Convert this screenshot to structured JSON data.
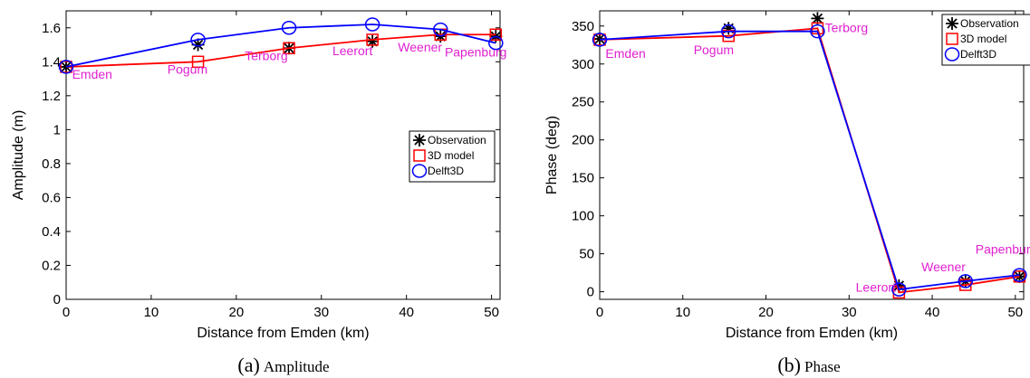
{
  "chart_data": [
    {
      "type": "line",
      "caption_letter": "(a)",
      "caption_text": "Amplitude",
      "xlabel": "Distance from Emden (km)",
      "ylabel": "Amplitude (m)",
      "xlim": [
        0,
        51
      ],
      "ylim": [
        0,
        1.7
      ],
      "xticks": [
        0,
        10,
        20,
        30,
        40,
        50
      ],
      "yticks": [
        0,
        0.2,
        0.4,
        0.6,
        0.8,
        1,
        1.2,
        1.4,
        1.6
      ],
      "ytick_labels": [
        "0",
        "0.2",
        "0.4",
        "0.6",
        "0.8",
        "1",
        "1.2",
        "1.4",
        "1.6"
      ],
      "grid": false,
      "legend_position": "right",
      "x": [
        0,
        15.5,
        26.2,
        36,
        44,
        50.5
      ],
      "series": [
        {
          "name": "Observation",
          "color": "#000000",
          "marker": "star",
          "line": false,
          "values": [
            1.37,
            1.5,
            1.48,
            1.52,
            1.55,
            1.55
          ]
        },
        {
          "name": "3D model",
          "color": "#ff0000",
          "marker": "square",
          "line": true,
          "values": [
            1.37,
            1.4,
            1.48,
            1.53,
            1.56,
            1.56
          ]
        },
        {
          "name": "Delft3D",
          "color": "#0000ff",
          "marker": "circle",
          "line": true,
          "values": [
            1.37,
            1.53,
            1.6,
            1.62,
            1.59,
            1.51
          ]
        }
      ],
      "annotations": [
        {
          "text": "Emden",
          "x": 0.7,
          "y": 1.3
        },
        {
          "text": "Pogum",
          "x": 11.9,
          "y": 1.33
        },
        {
          "text": "Terborg",
          "x": 21,
          "y": 1.41
        },
        {
          "text": "Leerort",
          "x": 31.3,
          "y": 1.44
        },
        {
          "text": "Weener",
          "x": 39,
          "y": 1.46
        },
        {
          "text": "Papenburg",
          "x": 44.5,
          "y": 1.43
        }
      ]
    },
    {
      "type": "line",
      "caption_letter": "(b)",
      "caption_text": "Phase",
      "xlabel": "Distance from Emden (km)",
      "ylabel": "Phase (deg)",
      "xlim": [
        0,
        51
      ],
      "ylim": [
        -10,
        370
      ],
      "xticks": [
        0,
        10,
        20,
        30,
        40,
        50
      ],
      "yticks": [
        0,
        50,
        100,
        150,
        200,
        250,
        300,
        350
      ],
      "ytick_labels": [
        "0",
        "50",
        "100",
        "150",
        "200",
        "250",
        "300",
        "350"
      ],
      "grid": false,
      "legend_position": "top-right",
      "x": [
        0,
        15.5,
        26.2,
        36,
        44,
        50.5
      ],
      "series": [
        {
          "name": "Observation",
          "color": "#000000",
          "marker": "star",
          "line": false,
          "values": [
            333,
            347,
            360,
            8,
            14,
            20
          ]
        },
        {
          "name": "3D model",
          "color": "#ff0000",
          "marker": "square",
          "line": true,
          "values": [
            332,
            337,
            347,
            -1,
            9,
            20
          ]
        },
        {
          "name": "Delft3D",
          "color": "#0000ff",
          "marker": "circle",
          "line": true,
          "values": [
            332,
            343,
            343,
            3,
            14,
            22
          ]
        }
      ],
      "annotations": [
        {
          "text": "Emden",
          "x": 0.7,
          "y": 308
        },
        {
          "text": "Pogum",
          "x": 11.3,
          "y": 313
        },
        {
          "text": "Terborg",
          "x": 27.1,
          "y": 342
        },
        {
          "text": "Leerort",
          "x": 30.8,
          "y": 0
        },
        {
          "text": "Weener",
          "x": 38.7,
          "y": 27
        },
        {
          "text": "Papenburg",
          "x": 45.2,
          "y": 50
        }
      ]
    }
  ]
}
